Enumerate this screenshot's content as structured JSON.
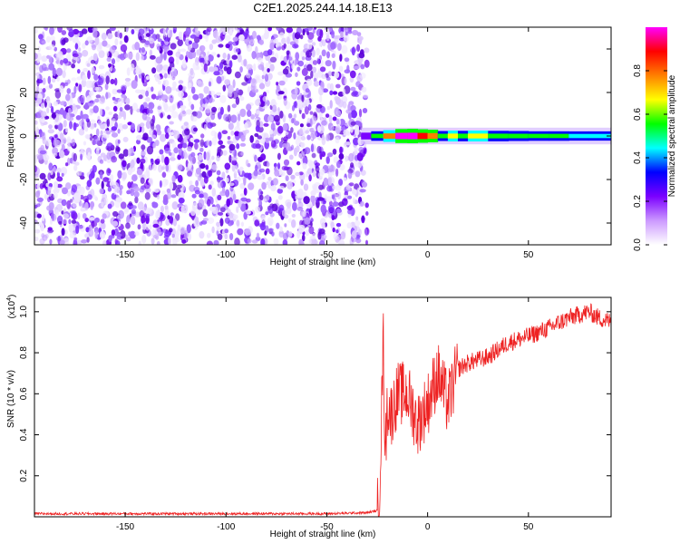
{
  "figure": {
    "title": "C2E1.2025.244.14.18.E13"
  },
  "chart_data": [
    {
      "type": "heatmap",
      "title": "C2E1.2025.244.14.18.E13",
      "xlabel": "Height of straight line (km)",
      "ylabel": "Frequency (Hz)",
      "xlim": [
        -195,
        91
      ],
      "ylim": [
        -50,
        50
      ],
      "xticks": [
        -150,
        -100,
        -50,
        0,
        50
      ],
      "xtick_labels": [
        "-150",
        "-100",
        "-50",
        "0",
        "50"
      ],
      "yticks": [
        -40,
        -20,
        0,
        20,
        40
      ],
      "ytick_labels": [
        "-40",
        "-20",
        "0",
        "20",
        "40"
      ],
      "noise_region_km": [
        -195,
        -30
      ],
      "signal_band_hz": [
        -3,
        3
      ],
      "signal_profile": {
        "x_km": [
          -33,
          -28,
          -22,
          -16,
          -10,
          -5,
          0,
          5,
          10,
          15,
          20,
          30,
          40,
          50,
          60,
          70,
          80,
          91
        ],
        "amplitude": [
          0.15,
          0.45,
          0.7,
          0.95,
          1.0,
          0.9,
          0.8,
          0.5,
          0.6,
          0.55,
          0.6,
          0.55,
          0.5,
          0.45,
          0.45,
          0.42,
          0.42,
          0.4
        ]
      },
      "colorbar": {
        "label": "Normalized spectral amplitude",
        "range": [
          0,
          1
        ],
        "ticks": [
          0.0,
          0.2,
          0.4,
          0.6,
          0.8
        ],
        "tick_labels": [
          "0.0",
          "0.2",
          "0.4",
          "0.6",
          "0.8"
        ],
        "colors": [
          "#ffffff",
          "#cc99ff",
          "#7b00ff",
          "#0000ff",
          "#00ffff",
          "#00ff00",
          "#ffff00",
          "#ff8000",
          "#ff0000",
          "#ff00ff"
        ]
      }
    },
    {
      "type": "line",
      "xlabel": "Height of straight line (km)",
      "ylabel": "SNR (10 * v/v)",
      "y_scale_label": "(x10",
      "y_scale_exp": "4",
      "y_scale_close": ")",
      "xlim": [
        -195,
        91
      ],
      "ylim": [
        0.0,
        1.07
      ],
      "xticks": [
        -150,
        -100,
        -50,
        0,
        50
      ],
      "xtick_labels": [
        "-150",
        "-100",
        "-50",
        "0",
        "50"
      ],
      "yticks": [
        0.2,
        0.4,
        0.6,
        0.8,
        1.0
      ],
      "ytick_labels": [
        "0.2",
        "0.4",
        "0.6",
        "0.8",
        "1.0"
      ],
      "series": [
        {
          "name": "SNR",
          "color": "#ee2222",
          "x": [
            -195,
            -150,
            -100,
            -50,
            -30,
            -25,
            -24,
            -23,
            -22,
            -21,
            -20,
            -18,
            -15,
            -10,
            -5,
            0,
            5,
            10,
            15,
            20,
            30,
            40,
            50,
            60,
            70,
            80,
            85,
            91
          ],
          "y": [
            0.015,
            0.015,
            0.015,
            0.015,
            0.02,
            0.03,
            0.08,
            0.45,
            0.87,
            0.3,
            0.55,
            0.5,
            0.6,
            0.6,
            0.45,
            0.55,
            0.7,
            0.55,
            0.72,
            0.75,
            0.78,
            0.85,
            0.88,
            0.92,
            0.97,
            1.0,
            0.97,
            0.95
          ]
        }
      ]
    }
  ]
}
